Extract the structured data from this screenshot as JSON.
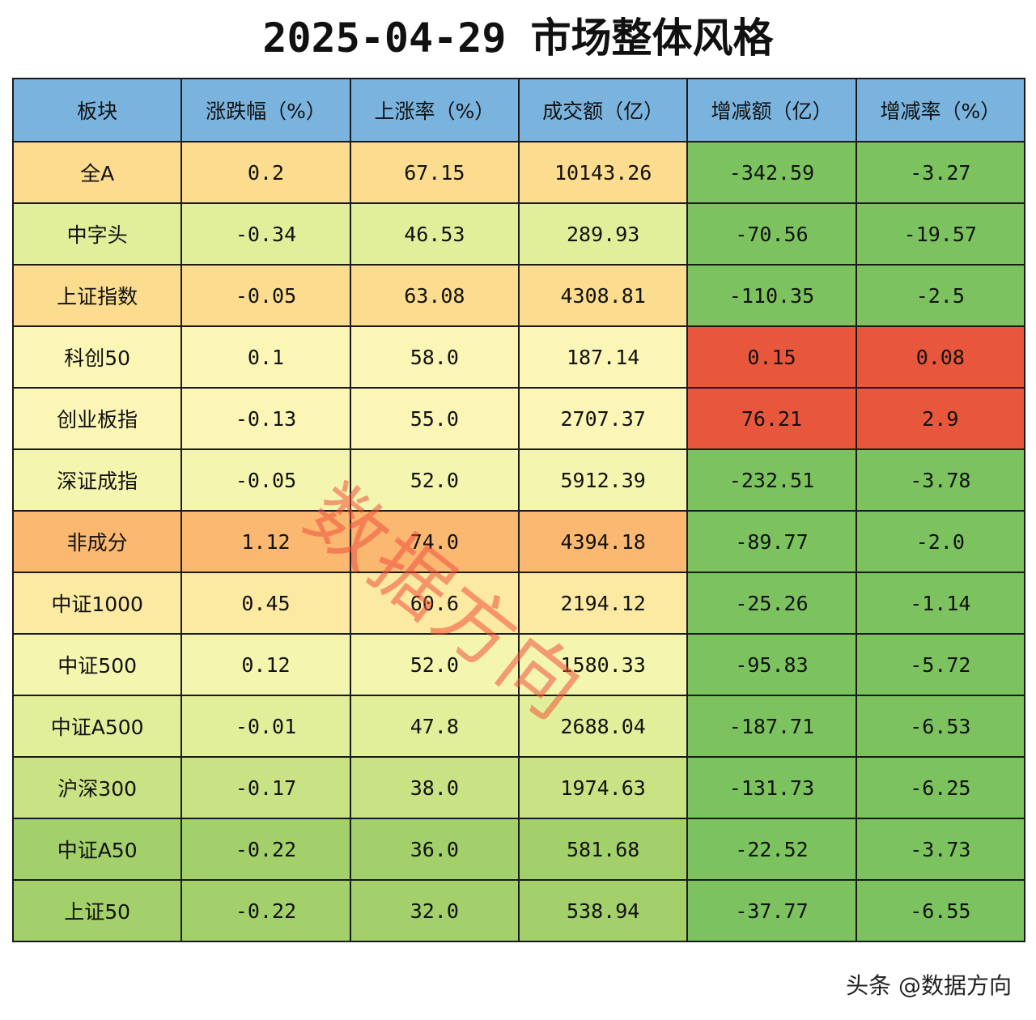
{
  "title": "2025-04-29 市场整体风格",
  "footer": "头条 @数据方向",
  "watermark": "数据方向",
  "colors": {
    "header": "#7ab4de",
    "green_strong": "#7cc35f",
    "green_mid": "#a3d06a",
    "green_light": "#c9e283",
    "yellow_green": "#e1ef9a",
    "pale_yellow": "#f4f6b0",
    "light_yellow": "#fbf5b6",
    "cream": "#fce9a2",
    "light_orange": "#fcdc8e",
    "orange": "#fbb871",
    "red": "#e8573b"
  },
  "chart_data": {
    "type": "table",
    "title": "2025-04-29 市场整体风格",
    "columns": [
      "板块",
      "涨跌幅（%）",
      "上涨率（%）",
      "成交额（亿）",
      "增减额（亿）",
      "增减率（%）"
    ],
    "rows": [
      [
        "全A",
        "0.2",
        "67.15",
        "10143.26",
        "-342.59",
        "-3.27"
      ],
      [
        "中字头",
        "-0.34",
        "46.53",
        "289.93",
        "-70.56",
        "-19.57"
      ],
      [
        "上证指数",
        "-0.05",
        "63.08",
        "4308.81",
        "-110.35",
        "-2.5"
      ],
      [
        "科创50",
        "0.1",
        "58.0",
        "187.14",
        "0.15",
        "0.08"
      ],
      [
        "创业板指",
        "-0.13",
        "55.0",
        "2707.37",
        "76.21",
        "2.9"
      ],
      [
        "深证成指",
        "-0.05",
        "52.0",
        "5912.39",
        "-232.51",
        "-3.78"
      ],
      [
        "非成分",
        "1.12",
        "74.0",
        "4394.18",
        "-89.77",
        "-2.0"
      ],
      [
        "中证1000",
        "0.45",
        "60.6",
        "2194.12",
        "-25.26",
        "-1.14"
      ],
      [
        "中证500",
        "0.12",
        "52.0",
        "1580.33",
        "-95.83",
        "-5.72"
      ],
      [
        "中证A500",
        "-0.01",
        "47.8",
        "2688.04",
        "-187.71",
        "-6.53"
      ],
      [
        "沪深300",
        "-0.17",
        "38.0",
        "1974.63",
        "-131.73",
        "-6.25"
      ],
      [
        "中证A50",
        "-0.22",
        "36.0",
        "581.68",
        "-22.52",
        "-3.73"
      ],
      [
        "上证50",
        "-0.22",
        "32.0",
        "538.94",
        "-37.77",
        "-6.55"
      ]
    ],
    "left_colors": [
      "light_orange",
      "yellow_green",
      "light_orange",
      "light_yellow",
      "light_yellow",
      "pale_yellow",
      "orange",
      "cream",
      "pale_yellow",
      "yellow_green",
      "green_light",
      "green_mid",
      "green_mid"
    ],
    "right_colors": [
      [
        "green_strong",
        "green_strong"
      ],
      [
        "green_strong",
        "green_strong"
      ],
      [
        "green_strong",
        "green_strong"
      ],
      [
        "red",
        "red"
      ],
      [
        "red",
        "red"
      ],
      [
        "green_strong",
        "green_strong"
      ],
      [
        "green_strong",
        "green_strong"
      ],
      [
        "green_strong",
        "green_strong"
      ],
      [
        "green_strong",
        "green_strong"
      ],
      [
        "green_strong",
        "green_strong"
      ],
      [
        "green_strong",
        "green_strong"
      ],
      [
        "green_strong",
        "green_strong"
      ],
      [
        "green_strong",
        "green_strong"
      ]
    ]
  }
}
